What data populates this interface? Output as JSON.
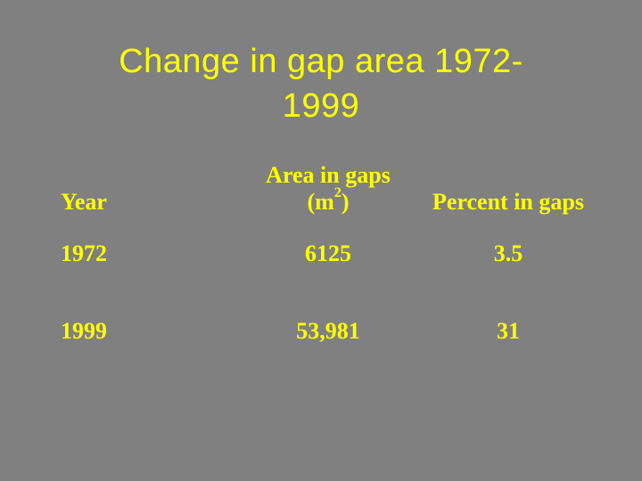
{
  "slide": {
    "background": "#808080",
    "text_color": "#ffff00",
    "title_line1": "Change in gap area 1972-",
    "title_line2": "1999"
  },
  "table": {
    "headers": {
      "year": "Year",
      "area_line1": "Area in gaps",
      "area_line2_prefix": "(m",
      "area_line2_sup": "2",
      "area_line2_suffix": ")",
      "percent": "Percent in gaps"
    },
    "rows": [
      {
        "year": "1972",
        "area": "6125",
        "percent": "3.5"
      },
      {
        "year": "1999",
        "area": "53,981",
        "percent": "31"
      }
    ]
  }
}
